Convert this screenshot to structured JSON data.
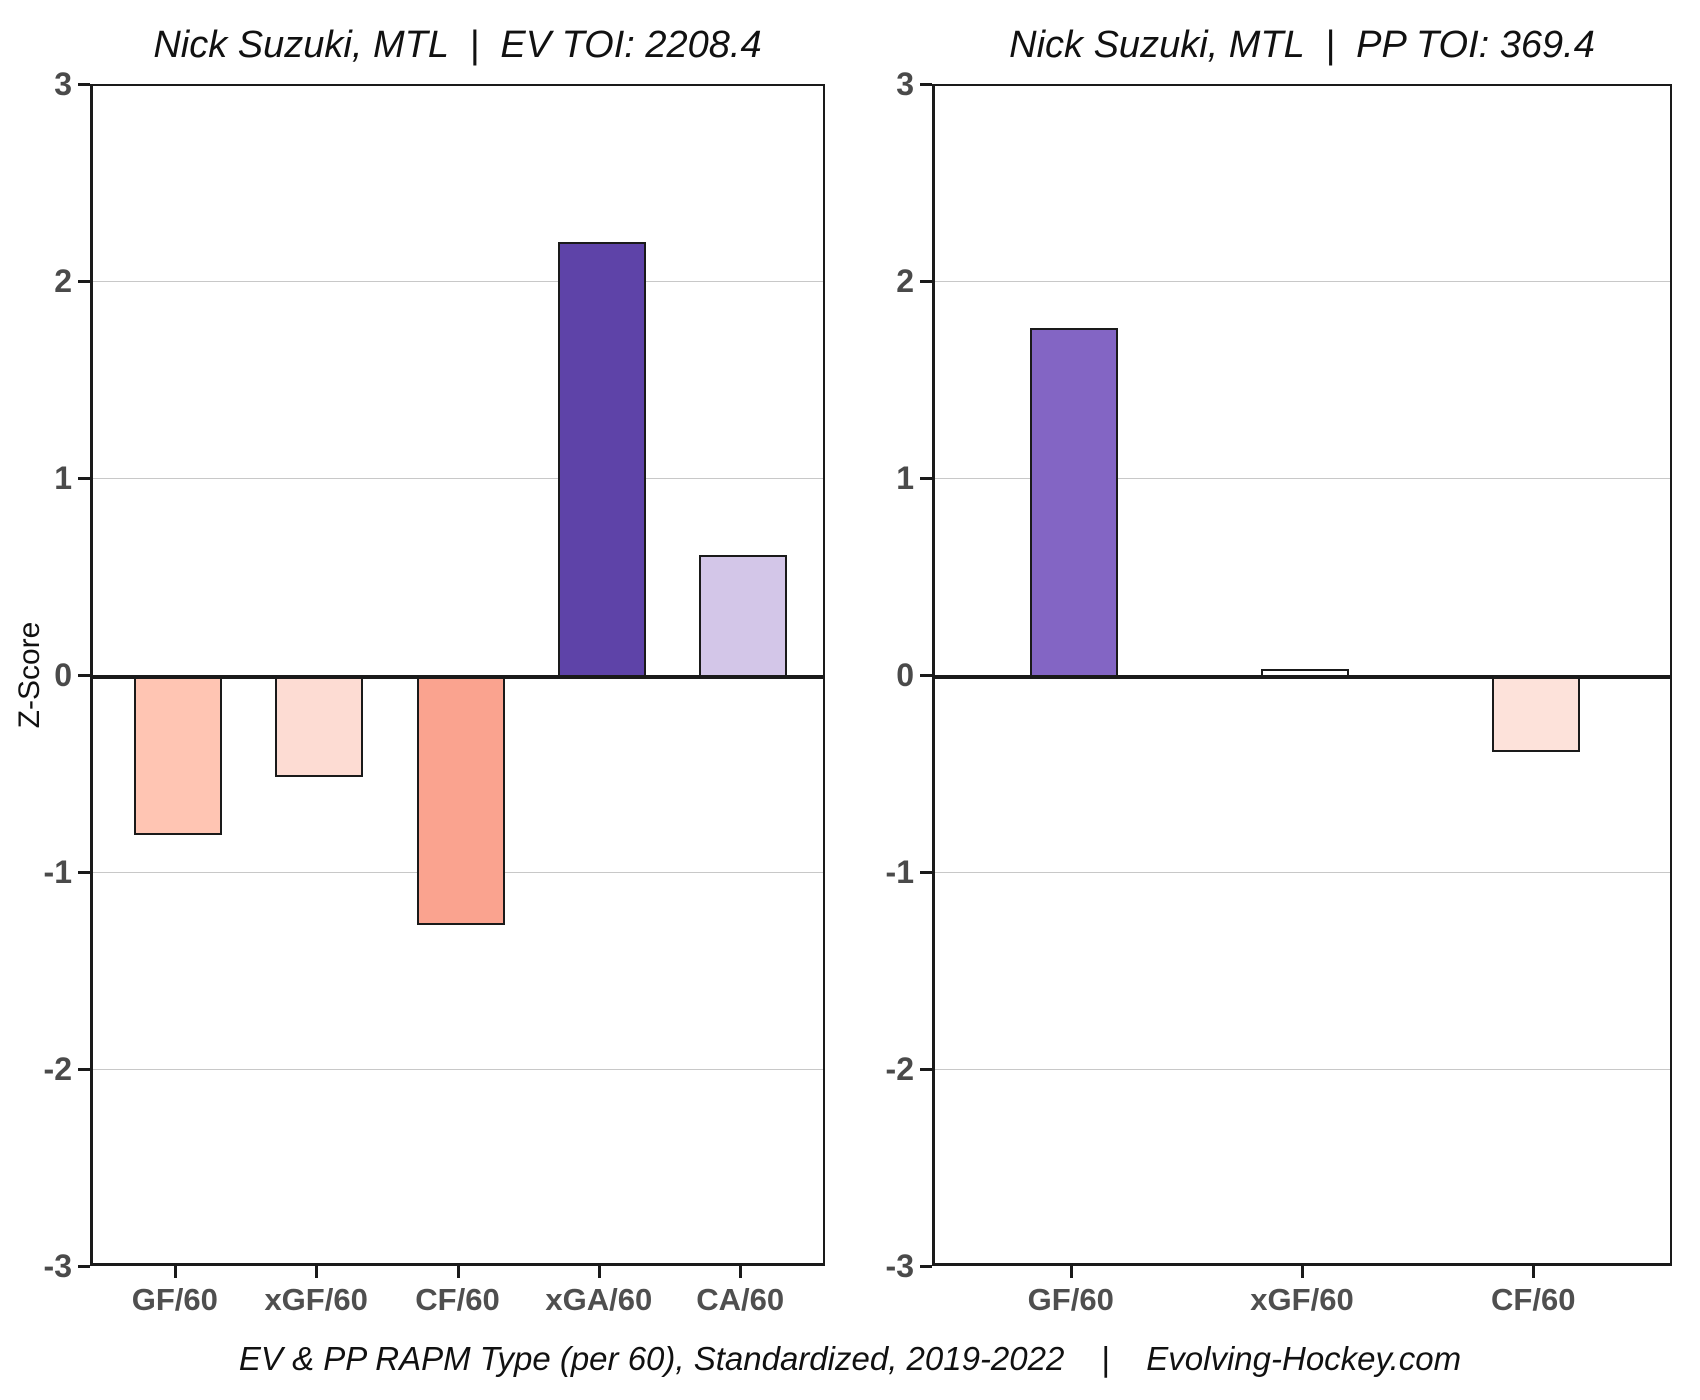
{
  "page": {
    "caption": "EV & PP RAPM Type (per 60), Standardized, 2019-2022    |    Evolving-Hockey.com",
    "ylabel": "Z-Score"
  },
  "colors": {
    "axis": "#1a1a1a",
    "gridline": "#c8c8c8",
    "tick_label": "#4a4a4a",
    "background": "#ffffff"
  },
  "chart_data": [
    {
      "type": "bar",
      "title": "Nick Suzuki, MTL  |  EV TOI: 2208.4",
      "ylabel": "Z-Score",
      "ylim": [
        -3,
        3
      ],
      "yticks": [
        3,
        2,
        1,
        0,
        -1,
        -2,
        -3
      ],
      "gridlines": [
        2,
        1,
        -1,
        -2
      ],
      "grid": "on",
      "legend": "none",
      "categories": [
        "GF/60",
        "xGF/60",
        "CF/60",
        "xGA/60",
        "CA/60"
      ],
      "values": [
        -0.8,
        -0.51,
        -1.26,
        2.21,
        0.62
      ],
      "bar_colors": [
        "#ffc5b3",
        "#fddcd3",
        "#faa38f",
        "#5e43a8",
        "#d3c6e8"
      ]
    },
    {
      "type": "bar",
      "title": "Nick Suzuki, MTL  |  PP TOI: 369.4",
      "ylabel": "Z-Score",
      "ylim": [
        -3,
        3
      ],
      "yticks": [
        3,
        2,
        1,
        0,
        -1,
        -2,
        -3
      ],
      "gridlines": [
        2,
        1,
        -1,
        -2
      ],
      "grid": "on",
      "legend": "none",
      "categories": [
        "GF/60",
        "xGF/60",
        "CF/60"
      ],
      "values": [
        1.77,
        0.04,
        -0.38
      ],
      "bar_colors": [
        "#8365c4",
        "#ffffff",
        "#fde2da"
      ]
    }
  ]
}
